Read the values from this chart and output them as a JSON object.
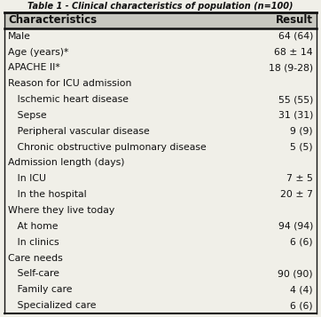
{
  "title": "Table 1 - Clinical characteristics of population (n=100)",
  "col0_header": "Characteristics",
  "col1_header": "Result",
  "rows": [
    {
      "label": "Male",
      "result": "64 (64)",
      "indent": 0
    },
    {
      "label": "Age (years)*",
      "result": "68 ± 14",
      "indent": 0
    },
    {
      "label": "APACHE II*",
      "result": "18 (9-28)",
      "indent": 0
    },
    {
      "label": "Reason for ICU admission",
      "result": "",
      "indent": 0
    },
    {
      "label": "   Ischemic heart disease",
      "result": "55 (55)",
      "indent": 1
    },
    {
      "label": "   Sepse",
      "result": "31 (31)",
      "indent": 1
    },
    {
      "label": "   Peripheral vascular disease",
      "result": "9 (9)",
      "indent": 1
    },
    {
      "label": "   Chronic obstructive pulmonary disease",
      "result": "5 (5)",
      "indent": 1
    },
    {
      "label": "Admission length (days)",
      "result": "",
      "indent": 0
    },
    {
      "label": "   In ICU",
      "result": "7 ± 5",
      "indent": 1
    },
    {
      "label": "   In the hospital",
      "result": "20 ± 7",
      "indent": 1
    },
    {
      "label": "Where they live today",
      "result": "",
      "indent": 0
    },
    {
      "label": "   At home",
      "result": "94 (94)",
      "indent": 1
    },
    {
      "label": "   In clinics",
      "result": "6 (6)",
      "indent": 1
    },
    {
      "label": "Care needs",
      "result": "",
      "indent": 0
    },
    {
      "label": "   Self-care",
      "result": "90 (90)",
      "indent": 1
    },
    {
      "label": "   Family care",
      "result": "4 (4)",
      "indent": 1
    },
    {
      "label": "   Specialized care",
      "result": "6 (6)",
      "indent": 1
    }
  ],
  "bg_color": "#f0efe8",
  "header_bg": "#c8c8c0",
  "line_color": "#111111",
  "text_color": "#111111",
  "font_size": 7.8,
  "header_font_size": 8.5,
  "title_font_size": 7.0
}
